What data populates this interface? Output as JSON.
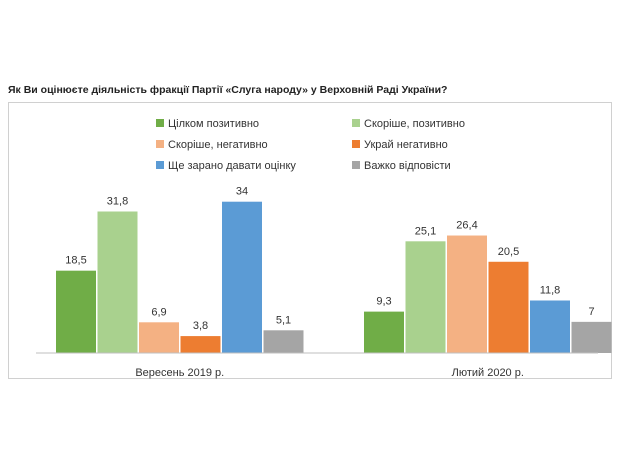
{
  "question": "Як Ви оцінюєте діяльність фракції Партії «Слуга народу» у Верховній Раді України?",
  "chart_data": {
    "type": "bar",
    "categories": [
      "Вересень 2019 р.",
      "Лютий 2020 р."
    ],
    "series": [
      {
        "name": "Цілком позитивно",
        "color": "#70ad47",
        "values": [
          18.5,
          9.3
        ],
        "labels": [
          "18,5",
          "9,3"
        ]
      },
      {
        "name": "Скоріше, позитивно",
        "color": "#a9d18e",
        "values": [
          31.8,
          25.1
        ],
        "labels": [
          "31,8",
          "25,1"
        ]
      },
      {
        "name": "Скоріше, негативно",
        "color": "#f4b183",
        "values": [
          6.9,
          26.4
        ],
        "labels": [
          "6,9",
          "26,4"
        ]
      },
      {
        "name": "Украй негативно",
        "color": "#ed7d31",
        "values": [
          3.8,
          20.5
        ],
        "labels": [
          "3,8",
          "20,5"
        ]
      },
      {
        "name": "Ще зарано давати оцінку",
        "color": "#5b9bd5",
        "values": [
          34,
          11.8
        ],
        "labels": [
          "34",
          "11,8"
        ]
      },
      {
        "name": "Важко відповісти",
        "color": "#a5a5a5",
        "values": [
          5.1,
          7
        ],
        "labels": [
          "5,1",
          "7"
        ]
      }
    ],
    "ylim": [
      0,
      40
    ],
    "grid": false,
    "legend_position": "top"
  }
}
